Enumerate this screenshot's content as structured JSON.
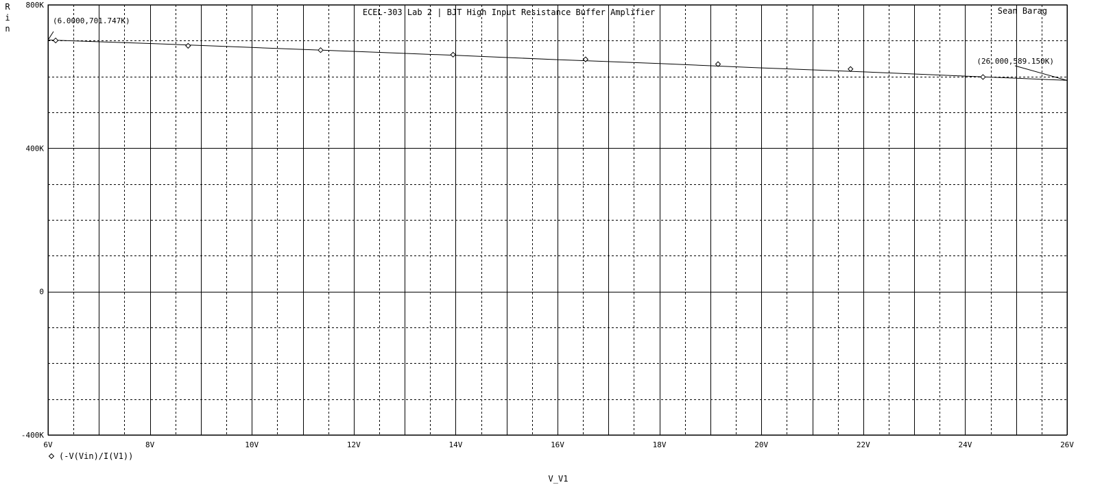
{
  "chart_data": {
    "type": "line",
    "title": "ECEL-303 Lab 2 | BJT High Input Resistance Buffer Amplifier",
    "author": "Sean Barag",
    "xlabel": "V_V1",
    "ylabel": "Rin",
    "xlim": [
      6,
      26
    ],
    "ylim": [
      -400000,
      800000
    ],
    "x_ticks": [
      6,
      8,
      10,
      12,
      14,
      16,
      18,
      20,
      22,
      24,
      26
    ],
    "x_tick_labels": [
      "6V",
      "8V",
      "10V",
      "12V",
      "14V",
      "16V",
      "18V",
      "20V",
      "22V",
      "24V",
      "26V"
    ],
    "y_ticks": [
      -400000,
      0,
      400000,
      800000
    ],
    "y_tick_labels": [
      "-400K",
      "0",
      "400K",
      "800K"
    ],
    "grid": true,
    "legend_position": "bottom-left",
    "series": [
      {
        "name": "(-V(Vin)/I(V1))",
        "marker": "diamond",
        "x": [
          6,
          8,
          10,
          12,
          14,
          16,
          18,
          20,
          22,
          24,
          26
        ],
        "values": [
          701747,
          692000,
          681000,
          670000,
          659000,
          647000,
          636000,
          624000,
          613000,
          601000,
          589150
        ],
        "marker_x": [
          6.15,
          8.75,
          11.35,
          13.95,
          16.55,
          19.15,
          21.75,
          24.35
        ],
        "marker_values": [
          700500,
          685600,
          673500,
          660800,
          647800,
          634500,
          620800,
          598500
        ]
      }
    ],
    "annotations": [
      {
        "text": "(6.0000,701.747K)",
        "x": 6.0,
        "y": 701747
      },
      {
        "text": "(26.000,589.150K)",
        "x": 26.0,
        "y": 589150
      }
    ]
  }
}
